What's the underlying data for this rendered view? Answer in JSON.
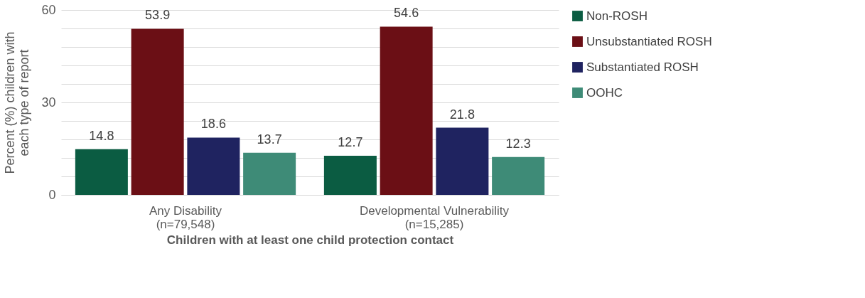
{
  "chart_data": {
    "type": "bar",
    "xlabel": "Children with at least one child protection contact",
    "ylabel": "Percent (%) children with each type of report",
    "categories": [
      "Any Disability\n(n=79,548)",
      "Developmental Vulnerability\n(n=15,285)"
    ],
    "series": [
      {
        "name": "Non-ROSH",
        "color": "#0b5c42",
        "values": [
          14.8,
          12.7
        ]
      },
      {
        "name": "Unsubstantiated ROSH",
        "color": "#6b0f15",
        "values": [
          53.9,
          54.6
        ]
      },
      {
        "name": "Substantiated ROSH",
        "color": "#1f2360",
        "values": [
          18.6,
          21.8
        ]
      },
      {
        "name": "OOHC",
        "color": "#3e8b77",
        "values": [
          13.7,
          12.3
        ]
      }
    ],
    "ylim": [
      0,
      60
    ],
    "yticks": [
      0,
      {
        "value": 6,
        "label": null
      },
      {
        "value": 12,
        "label": null
      },
      {
        "value": 18,
        "label": null
      },
      {
        "value": 24,
        "label": null
      },
      30,
      {
        "value": 36,
        "label": null
      },
      {
        "value": 42,
        "label": null
      },
      {
        "value": 48,
        "label": null
      },
      {
        "value": 54,
        "label": null
      },
      60
    ],
    "grid": "y",
    "legend": "right",
    "data_labels": true
  }
}
